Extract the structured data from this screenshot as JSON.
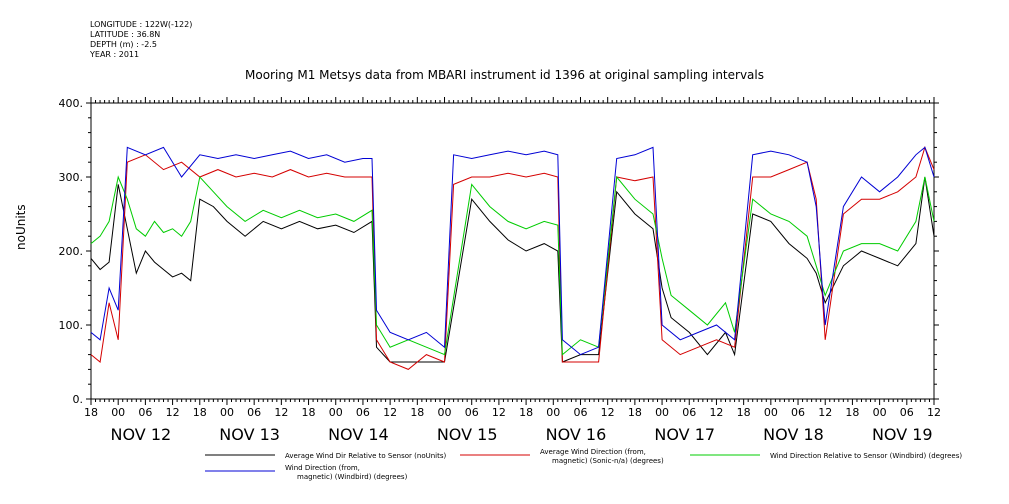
{
  "header": {
    "longitude": "LONGITUDE : 122W(-122)",
    "latitude": "LATITUDE : 36.8N",
    "depth": "DEPTH (m) : -2.5",
    "year": "YEAR : 2011"
  },
  "chart_data": {
    "type": "line",
    "title": "Mooring M1 Metsys data from MBARI instrument id 1396 at original sampling intervals",
    "ylabel": "noUnits",
    "ylim": [
      0,
      400
    ],
    "y_ticks": [
      "0.",
      "100.",
      "200.",
      "300.",
      "400."
    ],
    "x_ticks": [
      "18",
      "00",
      "06",
      "12",
      "18",
      "00",
      "06",
      "12",
      "18",
      "00",
      "06",
      "12",
      "18",
      "00",
      "06",
      "12",
      "18",
      "00",
      "06",
      "12",
      "18",
      "00",
      "06",
      "12",
      "18",
      "00",
      "06",
      "12",
      "18",
      "00",
      "06",
      "12"
    ],
    "day_labels": [
      "NOV 12",
      "NOV 13",
      "NOV 14",
      "NOV 15",
      "NOV 16",
      "NOV 17",
      "NOV 18",
      "NOV 19"
    ],
    "x_range_hours": [
      0,
      186
    ],
    "series": [
      {
        "name": "Average Wind Dir Relative to Sensor (noUnits)",
        "color": "#000000",
        "points": [
          [
            0,
            190
          ],
          [
            2,
            175
          ],
          [
            4,
            185
          ],
          [
            6,
            290
          ],
          [
            8,
            230
          ],
          [
            10,
            170
          ],
          [
            12,
            200
          ],
          [
            14,
            185
          ],
          [
            16,
            175
          ],
          [
            18,
            165
          ],
          [
            20,
            170
          ],
          [
            22,
            160
          ],
          [
            24,
            270
          ],
          [
            27,
            260
          ],
          [
            30,
            240
          ],
          [
            34,
            220
          ],
          [
            38,
            240
          ],
          [
            42,
            230
          ],
          [
            46,
            240
          ],
          [
            50,
            230
          ],
          [
            54,
            235
          ],
          [
            58,
            225
          ],
          [
            62,
            240
          ],
          [
            63,
            70
          ],
          [
            66,
            50
          ],
          [
            70,
            50
          ],
          [
            74,
            50
          ],
          [
            78,
            50
          ],
          [
            84,
            270
          ],
          [
            88,
            240
          ],
          [
            92,
            215
          ],
          [
            96,
            200
          ],
          [
            100,
            210
          ],
          [
            103,
            200
          ],
          [
            104,
            50
          ],
          [
            108,
            60
          ],
          [
            112,
            60
          ],
          [
            116,
            280
          ],
          [
            120,
            250
          ],
          [
            124,
            230
          ],
          [
            126,
            150
          ],
          [
            128,
            110
          ],
          [
            132,
            90
          ],
          [
            136,
            60
          ],
          [
            140,
            90
          ],
          [
            142,
            60
          ],
          [
            146,
            250
          ],
          [
            150,
            240
          ],
          [
            154,
            210
          ],
          [
            158,
            190
          ],
          [
            160,
            170
          ],
          [
            162,
            130
          ],
          [
            166,
            180
          ],
          [
            170,
            200
          ],
          [
            174,
            190
          ],
          [
            178,
            180
          ],
          [
            182,
            210
          ],
          [
            184,
            300
          ],
          [
            186,
            220
          ]
        ]
      },
      {
        "name": "Average Wind Direction (from, magnetic) (Sonic-n/a) (degrees)",
        "color": "#d40000",
        "points": [
          [
            0,
            60
          ],
          [
            2,
            50
          ],
          [
            4,
            130
          ],
          [
            6,
            80
          ],
          [
            8,
            320
          ],
          [
            12,
            330
          ],
          [
            16,
            310
          ],
          [
            20,
            320
          ],
          [
            24,
            300
          ],
          [
            28,
            310
          ],
          [
            32,
            300
          ],
          [
            36,
            305
          ],
          [
            40,
            300
          ],
          [
            44,
            310
          ],
          [
            48,
            300
          ],
          [
            52,
            305
          ],
          [
            56,
            300
          ],
          [
            60,
            300
          ],
          [
            62,
            300
          ],
          [
            63,
            80
          ],
          [
            66,
            50
          ],
          [
            70,
            40
          ],
          [
            74,
            60
          ],
          [
            78,
            50
          ],
          [
            80,
            290
          ],
          [
            84,
            300
          ],
          [
            88,
            300
          ],
          [
            92,
            305
          ],
          [
            96,
            300
          ],
          [
            100,
            305
          ],
          [
            103,
            300
          ],
          [
            104,
            50
          ],
          [
            108,
            50
          ],
          [
            112,
            50
          ],
          [
            116,
            300
          ],
          [
            120,
            295
          ],
          [
            124,
            300
          ],
          [
            126,
            80
          ],
          [
            130,
            60
          ],
          [
            134,
            70
          ],
          [
            138,
            80
          ],
          [
            142,
            70
          ],
          [
            146,
            300
          ],
          [
            150,
            300
          ],
          [
            154,
            310
          ],
          [
            158,
            320
          ],
          [
            160,
            270
          ],
          [
            162,
            80
          ],
          [
            166,
            250
          ],
          [
            170,
            270
          ],
          [
            174,
            270
          ],
          [
            178,
            280
          ],
          [
            182,
            300
          ],
          [
            184,
            340
          ],
          [
            186,
            310
          ]
        ]
      },
      {
        "name": "Wind Direction Relative to Sensor (Windbird) (degrees)",
        "color": "#00cc00",
        "points": [
          [
            0,
            210
          ],
          [
            2,
            220
          ],
          [
            4,
            240
          ],
          [
            6,
            300
          ],
          [
            8,
            270
          ],
          [
            10,
            230
          ],
          [
            12,
            220
          ],
          [
            14,
            240
          ],
          [
            16,
            225
          ],
          [
            18,
            230
          ],
          [
            20,
            220
          ],
          [
            22,
            240
          ],
          [
            24,
            300
          ],
          [
            27,
            280
          ],
          [
            30,
            260
          ],
          [
            34,
            240
          ],
          [
            38,
            255
          ],
          [
            42,
            245
          ],
          [
            46,
            255
          ],
          [
            50,
            245
          ],
          [
            54,
            250
          ],
          [
            58,
            240
          ],
          [
            62,
            255
          ],
          [
            63,
            100
          ],
          [
            66,
            70
          ],
          [
            70,
            80
          ],
          [
            74,
            70
          ],
          [
            78,
            60
          ],
          [
            84,
            290
          ],
          [
            88,
            260
          ],
          [
            92,
            240
          ],
          [
            96,
            230
          ],
          [
            100,
            240
          ],
          [
            103,
            235
          ],
          [
            104,
            60
          ],
          [
            108,
            80
          ],
          [
            112,
            70
          ],
          [
            116,
            300
          ],
          [
            120,
            270
          ],
          [
            124,
            250
          ],
          [
            126,
            190
          ],
          [
            128,
            140
          ],
          [
            132,
            120
          ],
          [
            136,
            100
          ],
          [
            140,
            130
          ],
          [
            142,
            90
          ],
          [
            146,
            270
          ],
          [
            150,
            250
          ],
          [
            154,
            240
          ],
          [
            158,
            220
          ],
          [
            160,
            180
          ],
          [
            162,
            140
          ],
          [
            166,
            200
          ],
          [
            170,
            210
          ],
          [
            174,
            210
          ],
          [
            178,
            200
          ],
          [
            182,
            240
          ],
          [
            184,
            300
          ],
          [
            186,
            240
          ]
        ]
      },
      {
        "name": "Wind Direction (from, magnetic) (Windbird) (degrees)",
        "color": "#0000d4",
        "points": [
          [
            0,
            90
          ],
          [
            2,
            80
          ],
          [
            4,
            150
          ],
          [
            6,
            120
          ],
          [
            8,
            340
          ],
          [
            12,
            330
          ],
          [
            16,
            340
          ],
          [
            20,
            300
          ],
          [
            24,
            330
          ],
          [
            28,
            325
          ],
          [
            32,
            330
          ],
          [
            36,
            325
          ],
          [
            40,
            330
          ],
          [
            44,
            335
          ],
          [
            48,
            325
          ],
          [
            52,
            330
          ],
          [
            56,
            320
          ],
          [
            60,
            325
          ],
          [
            62,
            325
          ],
          [
            63,
            120
          ],
          [
            66,
            90
          ],
          [
            70,
            80
          ],
          [
            74,
            90
          ],
          [
            78,
            70
          ],
          [
            80,
            330
          ],
          [
            84,
            325
          ],
          [
            88,
            330
          ],
          [
            92,
            335
          ],
          [
            96,
            330
          ],
          [
            100,
            335
          ],
          [
            103,
            330
          ],
          [
            104,
            80
          ],
          [
            108,
            60
          ],
          [
            112,
            70
          ],
          [
            116,
            325
          ],
          [
            120,
            330
          ],
          [
            124,
            340
          ],
          [
            126,
            100
          ],
          [
            130,
            80
          ],
          [
            134,
            90
          ],
          [
            138,
            100
          ],
          [
            142,
            80
          ],
          [
            146,
            330
          ],
          [
            150,
            335
          ],
          [
            154,
            330
          ],
          [
            158,
            320
          ],
          [
            160,
            260
          ],
          [
            162,
            100
          ],
          [
            166,
            260
          ],
          [
            170,
            300
          ],
          [
            174,
            280
          ],
          [
            178,
            300
          ],
          [
            182,
            330
          ],
          [
            184,
            340
          ],
          [
            186,
            300
          ]
        ]
      }
    ],
    "legend": [
      {
        "label1": "Average Wind Dir Relative to Sensor (noUnits)",
        "label2": "",
        "color": "#000000"
      },
      {
        "label1": "Average Wind Direction (from,",
        "label2": "magnetic) (Sonic-n/a) (degrees)",
        "color": "#d40000"
      },
      {
        "label1": "Wind Direction Relative to Sensor (Windbird) (degrees)",
        "label2": "",
        "color": "#00cc00"
      },
      {
        "label1": "Wind Direction (from,",
        "label2": "magnetic) (Windbird) (degrees)",
        "color": "#0000d4"
      }
    ]
  }
}
